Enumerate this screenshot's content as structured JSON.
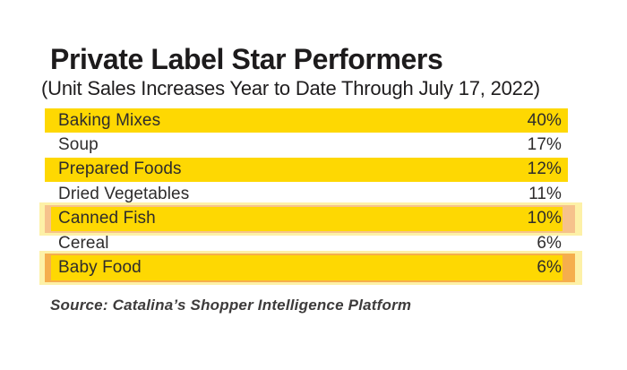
{
  "header": {
    "title": "Private Label Star Performers",
    "subtitle": "(Unit Sales Increases Year to Date Through July 17, 2022)"
  },
  "rows": [
    {
      "label": "Baking Mixes",
      "value": "40%",
      "highlight": "solid"
    },
    {
      "label": "Soup",
      "value": "17%",
      "highlight": "none"
    },
    {
      "label": "Prepared Foods",
      "value": "12%",
      "highlight": "solid"
    },
    {
      "label": "Dried Vegetables",
      "value": "11%",
      "highlight": "none"
    },
    {
      "label": "Canned Fish",
      "value": "10%",
      "highlight": "halo-peach"
    },
    {
      "label": "Cereal",
      "value": "6%",
      "highlight": "none"
    },
    {
      "label": "Baby Food",
      "value": "6%",
      "highlight": "halo-orange"
    }
  ],
  "footer": {
    "source": "Source: Catalina’s Shopper Intelligence Platform"
  },
  "colors": {
    "highlight_yellow": "#fed802",
    "halo_pale": "#fdf1a7",
    "halo_peach": "#f6c28c",
    "halo_orange": "#f5ae4d",
    "title_text": "#1d1b1c",
    "row_text": "#2e2c2c"
  },
  "chart_data": {
    "type": "table",
    "title": "Private Label Star Performers",
    "subtitle": "(Unit Sales Increases Year to Date Through July 17, 2022)",
    "categories": [
      "Baking Mixes",
      "Soup",
      "Prepared Foods",
      "Dried Vegetables",
      "Canned Fish",
      "Cereal",
      "Baby Food"
    ],
    "values": [
      40,
      17,
      12,
      11,
      10,
      6,
      6
    ],
    "unit": "%",
    "highlighted_categories": [
      "Baking Mixes",
      "Prepared Foods",
      "Canned Fish",
      "Baby Food"
    ],
    "source": "Source: Catalina’s Shopper Intelligence Platform",
    "legend": "none",
    "grid": "off"
  }
}
